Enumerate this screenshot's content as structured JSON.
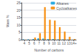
{
  "chart_data": {
    "type": "bar",
    "categories": [
      "4",
      "5",
      "6",
      "7",
      "8",
      "9",
      "10",
      "11",
      "12",
      "13",
      "14+"
    ],
    "series": [
      {
        "name": "Alkanes",
        "color": "#29abe2",
        "values": [
          0.3,
          0.3,
          0.5,
          1.0,
          0.8,
          0.5,
          0.5,
          0.3,
          0.3,
          0.2,
          0.1
        ]
      },
      {
        "name": "Cycloalkanes",
        "color": "#f7941d",
        "values": [
          0.1,
          0.1,
          1.5,
          4.5,
          22.0,
          13.5,
          13.0,
          8.5,
          5.5,
          2.0,
          0.5
        ]
      }
    ],
    "xlabel": "Number of carbons",
    "ylabel": "Mass %",
    "ylim": [
      0,
      25
    ],
    "yticks": [
      0,
      5,
      10,
      15,
      20,
      25
    ],
    "grid": true,
    "legend": "upper right"
  }
}
